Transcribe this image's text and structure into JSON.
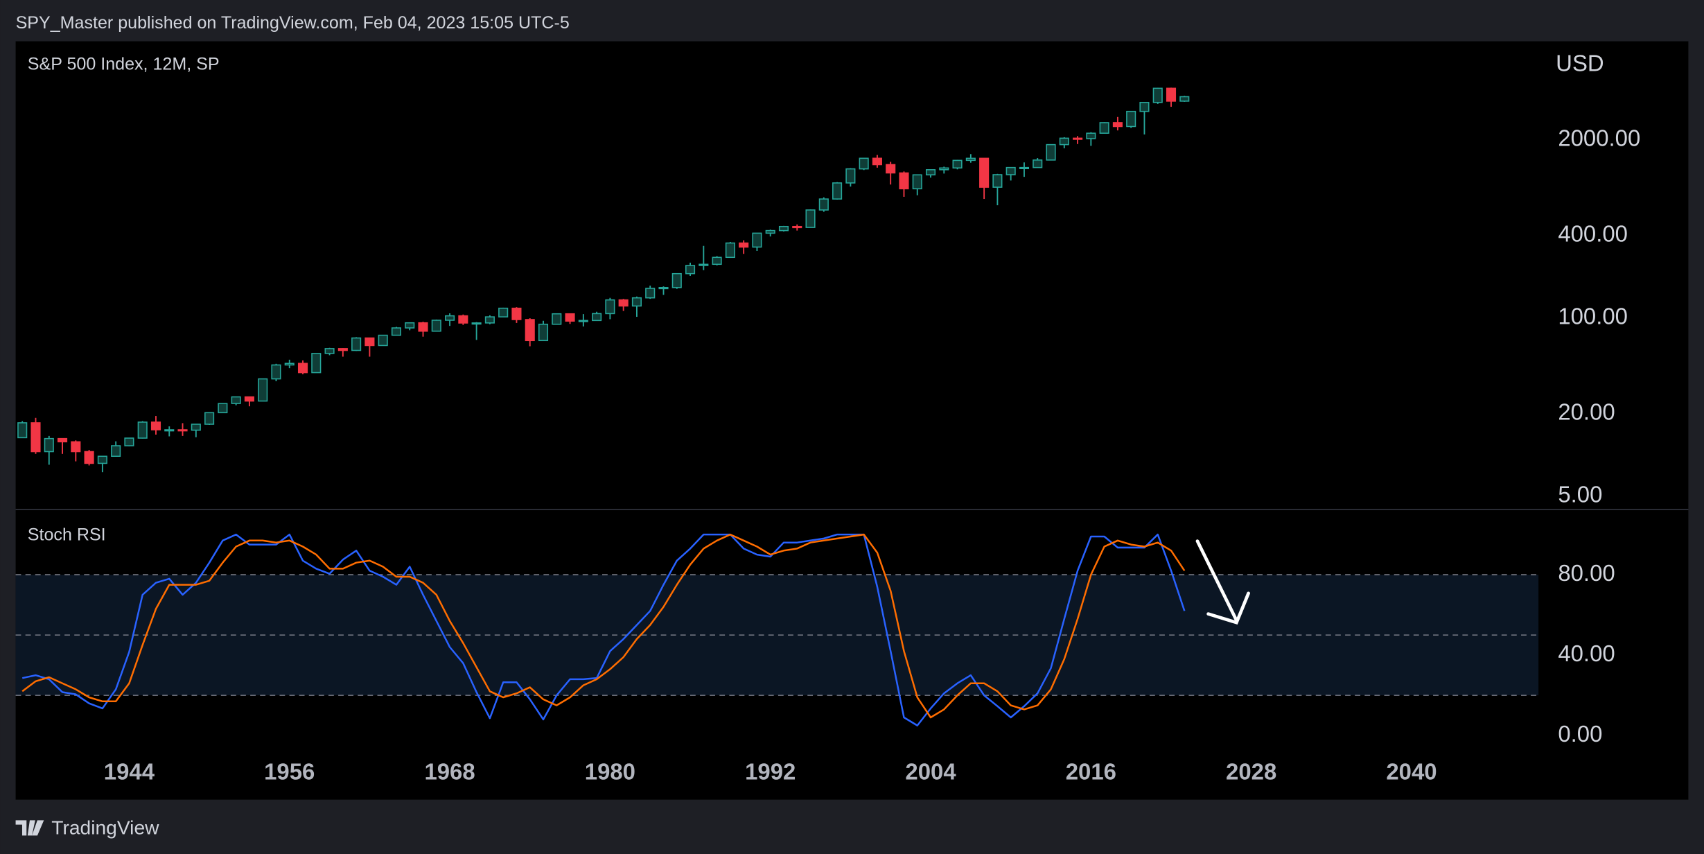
{
  "header": "SPY_Master published on TradingView.com, Feb 04, 2023 15:05 UTC-5",
  "footer": "TradingView",
  "chart_data": [
    {
      "type": "candlestick",
      "title": "S&P 500 Index, 12M, SP",
      "y_axis_label": "USD",
      "log_scale": true,
      "up_color": "#26a69a",
      "down_color": "#f23645",
      "x": [
        1936,
        1937,
        1938,
        1939,
        1940,
        1941,
        1942,
        1943,
        1944,
        1945,
        1946,
        1947,
        1948,
        1949,
        1950,
        1951,
        1952,
        1953,
        1954,
        1955,
        1956,
        1957,
        1958,
        1959,
        1960,
        1961,
        1962,
        1963,
        1964,
        1965,
        1966,
        1967,
        1968,
        1969,
        1970,
        1971,
        1972,
        1973,
        1974,
        1975,
        1976,
        1977,
        1978,
        1979,
        1980,
        1981,
        1982,
        1983,
        1984,
        1985,
        1986,
        1987,
        1988,
        1989,
        1990,
        1991,
        1992,
        1993,
        1994,
        1995,
        1996,
        1997,
        1998,
        1999,
        2000,
        2001,
        2002,
        2003,
        2004,
        2005,
        2006,
        2007,
        2008,
        2009,
        2010,
        2011,
        2012,
        2013,
        2014,
        2015,
        2016,
        2017,
        2018,
        2019,
        2020,
        2021,
        2022,
        2023
      ],
      "open": [
        13.4,
        17.2,
        10.6,
        13.2,
        12.5,
        10.6,
        8.7,
        9.8,
        11.7,
        13.3,
        17.4,
        15.3,
        15.3,
        15.2,
        16.8,
        20.4,
        23.8,
        26.6,
        24.8,
        36,
        45.5,
        46.7,
        40,
        55.2,
        59.9,
        58.1,
        71.6,
        63.1,
        75,
        84.8,
        92.4,
        80.3,
        96.5,
        103.9,
        92.1,
        92.2,
        102.1,
        118.1,
        97.6,
        68.6,
        90.2,
        107.5,
        95.1,
        96.1,
        107.9,
        135.8,
        122.6,
        140.6,
        164.9,
        167.2,
        211.3,
        242.2,
        247.1,
        277.7,
        353.4,
        330.2,
        417.1,
        435.7,
        466.5,
        459.3,
        615.9,
        740.7,
        970.4,
        1229.2,
        1469.3,
        1320.3,
        1148.1,
        879.8,
        1111.9,
        1211.9,
        1248.3,
        1418.3,
        1468.4,
        903.3,
        1115.1,
        1257.6,
        1257.6,
        1426.2,
        1848.4,
        2058.9,
        2043.9,
        2238.8,
        2673.6,
        2506.9,
        3230.8,
        3756.1,
        4766.2,
        3839.5
      ],
      "high": [
        17.7,
        18.7,
        13.8,
        13.2,
        12.8,
        10.9,
        9.8,
        12.6,
        13.3,
        17.7,
        19.3,
        16.2,
        17.1,
        16.8,
        20.4,
        23.9,
        26.6,
        26.7,
        36,
        46.4,
        49.7,
        49.1,
        55.2,
        60.7,
        60.4,
        72.6,
        72,
        75,
        86.3,
        92.6,
        94.1,
        97.6,
        108.4,
        106.2,
        93.5,
        104.8,
        119.1,
        120.2,
        99.8,
        95.6,
        107.8,
        107.5,
        107,
        111.3,
        140.5,
        138.1,
        143.7,
        172.7,
        170.4,
        212,
        254,
        336.8,
        283.7,
        360,
        369.8,
        418.3,
        442.7,
        471.3,
        482.9,
        622,
        762,
        983.8,
        1244,
        1473.1,
        1552.9,
        1383.4,
        1176.9,
        1112.6,
        1217.3,
        1275.8,
        1431.8,
        1576.1,
        1471.8,
        1130.4,
        1262.6,
        1370.6,
        1474.5,
        1849.4,
        2093.6,
        2134.7,
        2277.5,
        2694.9,
        2940.9,
        3247.9,
        3760.2,
        4808.9,
        4818.6,
        4195.4
      ],
      "low": [
        13.4,
        10.2,
        8.5,
        10.2,
        9,
        8.4,
        7.5,
        9.8,
        11.6,
        13.2,
        14.1,
        13.7,
        13.8,
        13.5,
        16.6,
        20.4,
        23.1,
        22.7,
        24.8,
        34.6,
        43.1,
        38.9,
        40,
        53.6,
        52.3,
        57.6,
        52.3,
        62.7,
        75,
        81.6,
        73.2,
        80.3,
        87.7,
        89.2,
        69.3,
        90.2,
        101.7,
        92.2,
        62.3,
        68.6,
        90.2,
        90.7,
        86.9,
        96.1,
        98.2,
        112.8,
        102.2,
        138.3,
        147.8,
        163.4,
        203.5,
        223.9,
        242.6,
        275.3,
        294.5,
        309.4,
        394.5,
        429,
        435.9,
        457.2,
        597.3,
        733,
        912.8,
        1205.5,
        1254.1,
        944.8,
        768.6,
        788.9,
        1060.7,
        1136.2,
        1219.3,
        1364.3,
        741,
        666.8,
        1010.9,
        1074.8,
        1257.6,
        1426.2,
        1737.9,
        1867,
        1810.1,
        2238.8,
        2346.6,
        2443.9,
        2191.9,
        3662.7,
        3491.6,
        3794.3
      ],
      "close": [
        17.2,
        10.6,
        13.2,
        12.5,
        10.6,
        8.7,
        9.8,
        11.7,
        13.3,
        17.4,
        15.3,
        15.3,
        15.2,
        16.8,
        20.4,
        23.8,
        26.6,
        24.8,
        36,
        45.5,
        46.7,
        40,
        55.2,
        59.9,
        58.1,
        71.6,
        63.1,
        75,
        84.8,
        92.4,
        80.3,
        96.5,
        103.9,
        92.1,
        92.2,
        102.1,
        118.1,
        97.6,
        68.6,
        90.2,
        107.5,
        95.1,
        96.1,
        107.9,
        135.8,
        122.6,
        140.6,
        164.9,
        167.2,
        211.3,
        242.2,
        247.1,
        277.7,
        353.4,
        330.2,
        417.1,
        435.7,
        466.5,
        459.3,
        615.9,
        740.7,
        970.4,
        1229.2,
        1469.3,
        1320.3,
        1148.1,
        879.8,
        1111.9,
        1211.9,
        1248.3,
        1418.3,
        1468.4,
        903.3,
        1115.1,
        1257.6,
        1257.6,
        1426.2,
        1848.4,
        2058.9,
        2043.9,
        2238.8,
        2673.6,
        2506.9,
        3230.8,
        3756.1,
        4766.2,
        3839.5,
        4136.5
      ],
      "xlim": [
        1935.5,
        2049.5
      ],
      "ylim": [
        4,
        10500
      ],
      "yticks": [
        {
          "value": 2000,
          "label": "2000.00"
        },
        {
          "value": 400,
          "label": "400.00"
        },
        {
          "value": 100,
          "label": "100.00"
        },
        {
          "value": 20,
          "label": "20.00"
        },
        {
          "value": 5,
          "label": "5.00"
        }
      ]
    },
    {
      "type": "line",
      "title": "Stoch RSI",
      "x": [
        1936,
        1937,
        1938,
        1939,
        1940,
        1941,
        1942,
        1943,
        1944,
        1945,
        1946,
        1947,
        1948,
        1949,
        1950,
        1951,
        1952,
        1953,
        1954,
        1955,
        1956,
        1957,
        1958,
        1959,
        1960,
        1961,
        1962,
        1963,
        1964,
        1965,
        1966,
        1967,
        1968,
        1969,
        1970,
        1971,
        1972,
        1973,
        1974,
        1975,
        1976,
        1977,
        1978,
        1979,
        1980,
        1981,
        1982,
        1983,
        1984,
        1985,
        1986,
        1987,
        1988,
        1989,
        1990,
        1991,
        1992,
        1993,
        1994,
        1995,
        1996,
        1997,
        1998,
        1999,
        2000,
        2001,
        2002,
        2003,
        2004,
        2005,
        2006,
        2007,
        2008,
        2009,
        2010,
        2011,
        2012,
        2013,
        2014,
        2015,
        2016,
        2017,
        2018,
        2019,
        2020,
        2021,
        2022,
        2023
      ],
      "series": [
        {
          "color": "#2962ff",
          "values": [
            28.6,
            30,
            28,
            21.6,
            20.5,
            16,
            13.5,
            23,
            41.6,
            70,
            76,
            78,
            70,
            76,
            86,
            97,
            100,
            95,
            95,
            95,
            100,
            87,
            83,
            80.5,
            87.5,
            92,
            82,
            79,
            75,
            84,
            70,
            57,
            44,
            36,
            21.6,
            8.6,
            26.5,
            26.5,
            18,
            8,
            20,
            28,
            28,
            28.6,
            42,
            48,
            55,
            62,
            75,
            87,
            93,
            100,
            100,
            100,
            93,
            90,
            89,
            96,
            96,
            97,
            98,
            100,
            100,
            100,
            74,
            42,
            9,
            5,
            13.5,
            21,
            26,
            30,
            20,
            14.6,
            9,
            14.6,
            21,
            33.5,
            58,
            82,
            99,
            99,
            93.5,
            93.5,
            93.5,
            100,
            82,
            62
          ]
        },
        {
          "color": "#ff6d00",
          "values": [
            22,
            27,
            29,
            26,
            23,
            19,
            17,
            17,
            26,
            45,
            63,
            75,
            75,
            75,
            77,
            86,
            94,
            97,
            97,
            96,
            97,
            94,
            90,
            83,
            83,
            86,
            87,
            84,
            79,
            79,
            76,
            70,
            57,
            46,
            34,
            22,
            19,
            21,
            24,
            18,
            15,
            19,
            25,
            28,
            33,
            39,
            48,
            55,
            64,
            75,
            85,
            93,
            97,
            100,
            97,
            94,
            90,
            92,
            93,
            96,
            97,
            98,
            99,
            100,
            91,
            72,
            42,
            19,
            9,
            13,
            20,
            26,
            26,
            22,
            15,
            13,
            15,
            23,
            38,
            58,
            80,
            94,
            97,
            95,
            94,
            96,
            92,
            82
          ]
        }
      ],
      "band_fill": [
        20,
        80
      ],
      "band_lines": [
        80,
        50,
        20
      ],
      "xlim": [
        1935.5,
        2049.5
      ],
      "ylim": [
        -9.2,
        112.4
      ],
      "yticks": [
        {
          "value": 80,
          "label": "80.00"
        },
        {
          "value": 40,
          "label": "40.00"
        },
        {
          "value": 0,
          "label": "0.00"
        }
      ],
      "xticks": [
        1944,
        1956,
        1968,
        1980,
        1992,
        2004,
        2016,
        2028,
        2040
      ]
    }
  ]
}
